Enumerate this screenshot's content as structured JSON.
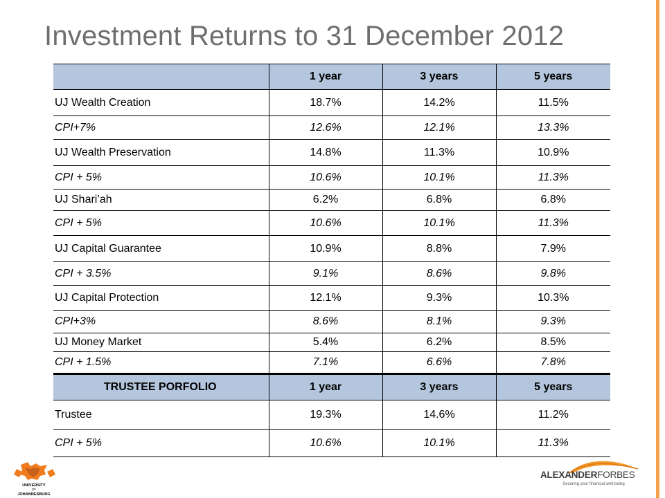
{
  "title": "Investment Returns to 31 December 2012",
  "accent_color": "#f5a04a",
  "header_color": "#b3c6dd",
  "table": {
    "columns": [
      "",
      "1 year",
      "3 years",
      "5 years"
    ],
    "rows": [
      {
        "type": "fund",
        "name": "UJ Wealth Creation",
        "y1": "18.7%",
        "y3": "14.2%",
        "y5": "11.5%"
      },
      {
        "type": "bench",
        "name": "CPI+7%",
        "y1": "12.6%",
        "y3": "12.1%",
        "y5": "13.3%"
      },
      {
        "type": "fund",
        "name": "UJ Wealth Preservation",
        "y1": "14.8%",
        "y3": "11.3%",
        "y5": "10.9%"
      },
      {
        "type": "bench",
        "name": "CPI + 5%",
        "y1": "10.6%",
        "y3": "10.1%",
        "y5": "11.3%"
      },
      {
        "type": "fund",
        "name": "UJ Shari’ah",
        "y1": "6.2%",
        "y3": "6.8%",
        "y5": "6.8%"
      },
      {
        "type": "bench",
        "name": "CPI + 5%",
        "y1": "10.6%",
        "y3": "10.1%",
        "y5": "11.3%"
      },
      {
        "type": "fund",
        "name": "UJ Capital Guarantee",
        "y1": "10.9%",
        "y3": "8.8%",
        "y5": "7.9%"
      },
      {
        "type": "bench",
        "name": "CPI + 3.5%",
        "y1": "9.1%",
        "y3": "8.6%",
        "y5": "9.8%"
      },
      {
        "type": "fund",
        "name": "UJ Capital Protection",
        "y1": "12.1%",
        "y3": "9.3%",
        "y5": "10.3%"
      },
      {
        "type": "bench",
        "name": "CPI+3%",
        "y1": "8.6%",
        "y3": "8.1%",
        "y5": "9.3%"
      },
      {
        "type": "fund",
        "name": "UJ Money Market",
        "y1": "5.4%",
        "y3": "6.2%",
        "y5": "8.5%"
      },
      {
        "type": "bench",
        "name": "CPI + 1.5%",
        "y1": "7.1%",
        "y3": "6.6%",
        "y5": "7.8%"
      }
    ],
    "trustee_header": {
      "label": "TRUSTEE PORFOLIO",
      "y1": "1 year",
      "y3": "3 years",
      "y5": "5 years"
    },
    "trustee_rows": [
      {
        "type": "fund",
        "name": "Trustee",
        "y1": "19.3%",
        "y3": "14.6%",
        "y5": "11.2%"
      },
      {
        "type": "bench",
        "name": "CPI + 5%",
        "y1": "10.6%",
        "y3": "10.1%",
        "y5": "11.3%"
      }
    ]
  },
  "logos": {
    "left": {
      "name": "University of Johannesburg",
      "lines": [
        "UNIVERSITY",
        "OF",
        "JOHANNESBURG"
      ]
    },
    "right": {
      "name": "AlexanderForbes",
      "wordmark_a": "ALEXANDER",
      "wordmark_b": "FORBES",
      "tagline": "Securing your financial well-being"
    }
  }
}
